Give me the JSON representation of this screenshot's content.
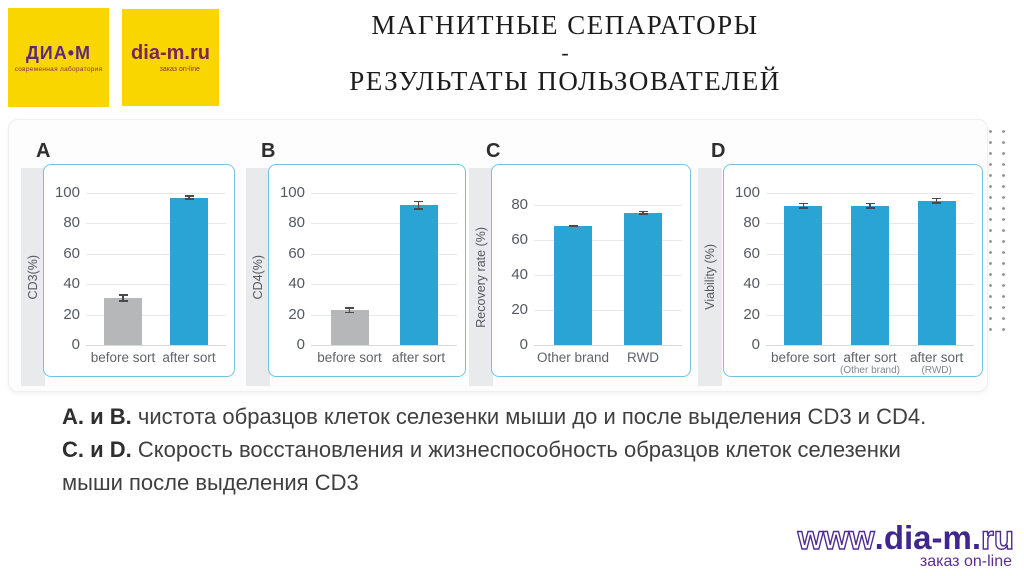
{
  "header": {
    "logo1": {
      "title": "ДИА•М",
      "subtitle": "современная лаборатория"
    },
    "logo2": {
      "title": "dia-m.ru",
      "subtitle": "заказ on-line"
    },
    "title_line1": "МАГНИТНЫЕ СЕПАРАТОРЫ",
    "title_sep": "-",
    "title_line2": "РЕЗУЛЬТАТЫ ПОЛЬЗОВАТЕЛЕЙ"
  },
  "chart_data": [
    {
      "id": "A",
      "type": "bar",
      "ylabel": "CD3(%)",
      "ylim": [
        0,
        100
      ],
      "yticks": [
        0,
        20,
        40,
        60,
        80,
        100
      ],
      "categories": [
        "before sort",
        "after sort"
      ],
      "values": [
        31,
        97
      ],
      "errors": [
        2.5,
        1.5
      ],
      "bar_colors": [
        "#b5b7b9",
        "#2aa4d4"
      ],
      "grid": true,
      "legend": "none"
    },
    {
      "id": "B",
      "type": "bar",
      "ylabel": "CD4(%)",
      "ylim": [
        0,
        100
      ],
      "yticks": [
        0,
        20,
        40,
        60,
        80,
        100
      ],
      "categories": [
        "before sort",
        "after sort"
      ],
      "values": [
        23,
        92
      ],
      "errors": [
        2,
        3
      ],
      "bar_colors": [
        "#b5b7b9",
        "#2aa4d4"
      ],
      "grid": true,
      "legend": "none"
    },
    {
      "id": "C",
      "type": "bar",
      "ylabel": "Recovery rate (%)",
      "ylim": [
        0,
        80
      ],
      "yticks": [
        0,
        20,
        40,
        60,
        80
      ],
      "categories": [
        "Other brand",
        "RWD"
      ],
      "values": [
        68,
        75.5
      ],
      "errors": [
        0.8,
        1.2
      ],
      "bar_colors": [
        "#2aa4d4",
        "#2aa4d4"
      ],
      "grid": true,
      "legend": "none"
    },
    {
      "id": "D",
      "type": "bar",
      "ylabel": "Viability (%)",
      "ylim": [
        0,
        100
      ],
      "yticks": [
        0,
        20,
        40,
        60,
        80,
        100
      ],
      "categories": [
        "before sort",
        "after sort",
        "after sort"
      ],
      "sublabels": [
        "",
        "(Other brand)",
        "(RWD)"
      ],
      "values": [
        91.5,
        91.5,
        95
      ],
      "errors": [
        2,
        2,
        2
      ],
      "bar_colors": [
        "#2aa4d4",
        "#2aa4d4",
        "#2aa4d4"
      ],
      "grid": true,
      "legend": "none"
    }
  ],
  "caption": {
    "lines": [
      {
        "bold": "A. и B.",
        "text": " чистота образцов клеток селезенки мыши до и после выделения CD3 и CD4."
      },
      {
        "bold": "C. и D.",
        "text": " Скорость восстановления и жизнеспособность образцов клеток селезенки"
      },
      {
        "bold": "",
        "text": "мыши после выделения CD3"
      }
    ]
  },
  "footer": {
    "www": "www",
    "dot1": ".",
    "domain": "dia-m",
    "dot2": ".",
    "tld": "ru",
    "tagline": "заказ on-line"
  },
  "colors": {
    "accent_blue": "#2aa4d4",
    "bar_gray": "#b5b7b9",
    "chart_border": "#74c3de",
    "logo_yellow": "#f9d600",
    "logo_purple": "#5c2781",
    "footer_purple": "#40278e"
  }
}
